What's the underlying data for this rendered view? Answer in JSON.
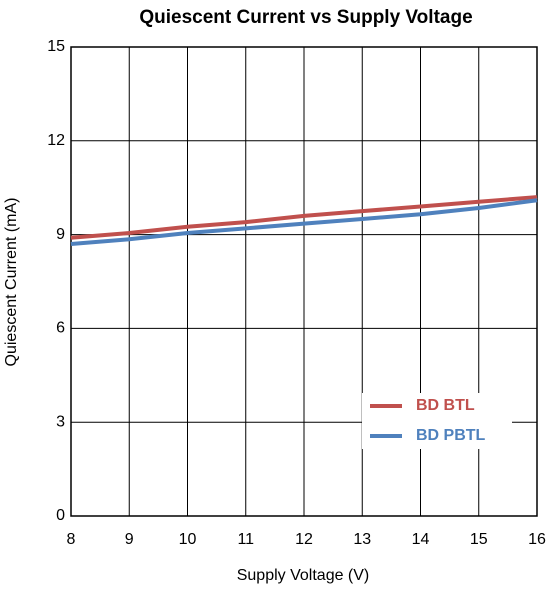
{
  "chart_data": {
    "type": "line",
    "title": "Quiescent Current vs Supply Voltage",
    "x_label": "Supply Voltage (V)",
    "y_label": "Quiescent Current (mA)",
    "x": [
      8,
      9,
      10,
      11,
      12,
      13,
      14,
      15,
      16
    ],
    "series": [
      {
        "name": "BD BTL",
        "color": "#c0504d",
        "values": [
          8.9,
          9.05,
          9.25,
          9.4,
          9.6,
          9.75,
          9.9,
          10.05,
          10.2
        ]
      },
      {
        "name": "BD PBTL",
        "color": "#4f81bd",
        "values": [
          8.7,
          8.85,
          9.05,
          9.2,
          9.35,
          9.5,
          9.65,
          9.85,
          10.1
        ]
      }
    ],
    "xlim": [
      8,
      16
    ],
    "xticks": [
      8,
      9,
      10,
      11,
      12,
      13,
      14,
      15,
      16
    ],
    "ylim": [
      0,
      15
    ],
    "yticks": [
      0,
      3,
      6,
      9,
      12,
      15
    ],
    "grid": true
  }
}
